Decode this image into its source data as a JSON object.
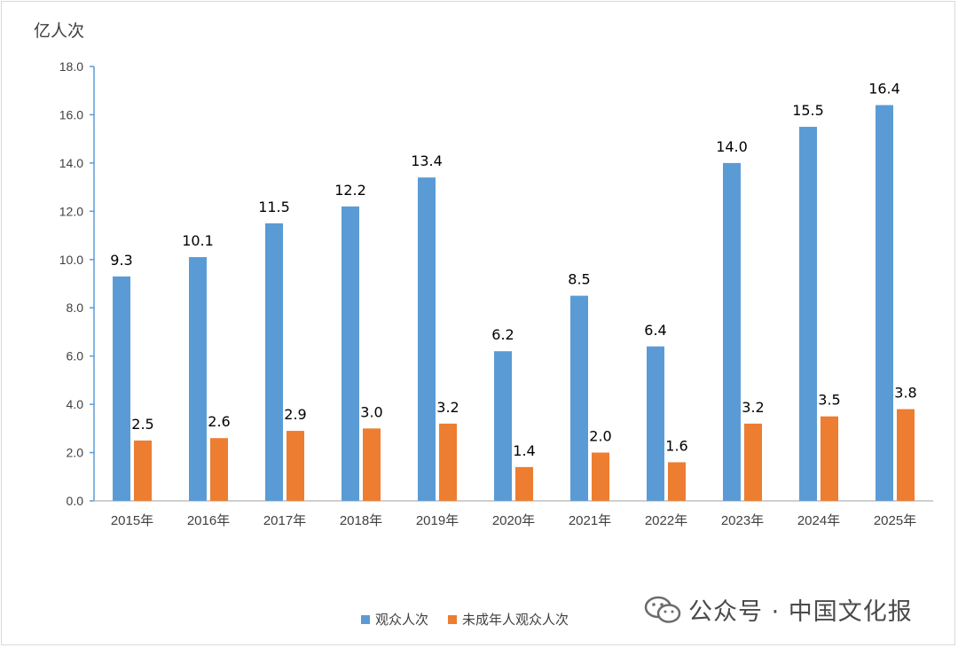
{
  "unit_label": "亿人次",
  "watermark": "公众号 · 中国文化报",
  "colors": {
    "series1": "#5b9bd5",
    "series2": "#ed7d31",
    "axis": "#5b9bd5"
  },
  "chart_data": {
    "type": "bar",
    "categories": [
      "2015年",
      "2016年",
      "2017年",
      "2018年",
      "2019年",
      "2020年",
      "2021年",
      "2022年",
      "2023年",
      "2024年",
      "2025年"
    ],
    "series": [
      {
        "name": "观众人次",
        "values": [
          9.3,
          10.1,
          11.5,
          12.2,
          13.4,
          6.2,
          8.5,
          6.4,
          14.0,
          15.5,
          16.4
        ],
        "labels": [
          "9.3",
          "10.1",
          "11.5",
          "12.2",
          "13.4",
          "6.2",
          "8.5",
          "6.4",
          "14.0",
          "15.5",
          "16.4"
        ]
      },
      {
        "name": "未成年人观众人次",
        "values": [
          2.5,
          2.6,
          2.9,
          3.0,
          3.2,
          1.4,
          2.0,
          1.6,
          3.2,
          3.5,
          3.8
        ],
        "labels": [
          "2.5",
          "2.6",
          "2.9",
          "3.0",
          "3.2",
          "1.4",
          "2.0",
          "1.6",
          "3.2",
          "3.5",
          "3.8"
        ]
      }
    ],
    "yticks": [
      "0.0",
      "2.0",
      "4.0",
      "6.0",
      "8.0",
      "10.0",
      "12.0",
      "14.0",
      "16.0",
      "18.0"
    ],
    "ylim": [
      0,
      18
    ],
    "ylabel": "亿人次",
    "grid": false,
    "legend": "bottom"
  }
}
